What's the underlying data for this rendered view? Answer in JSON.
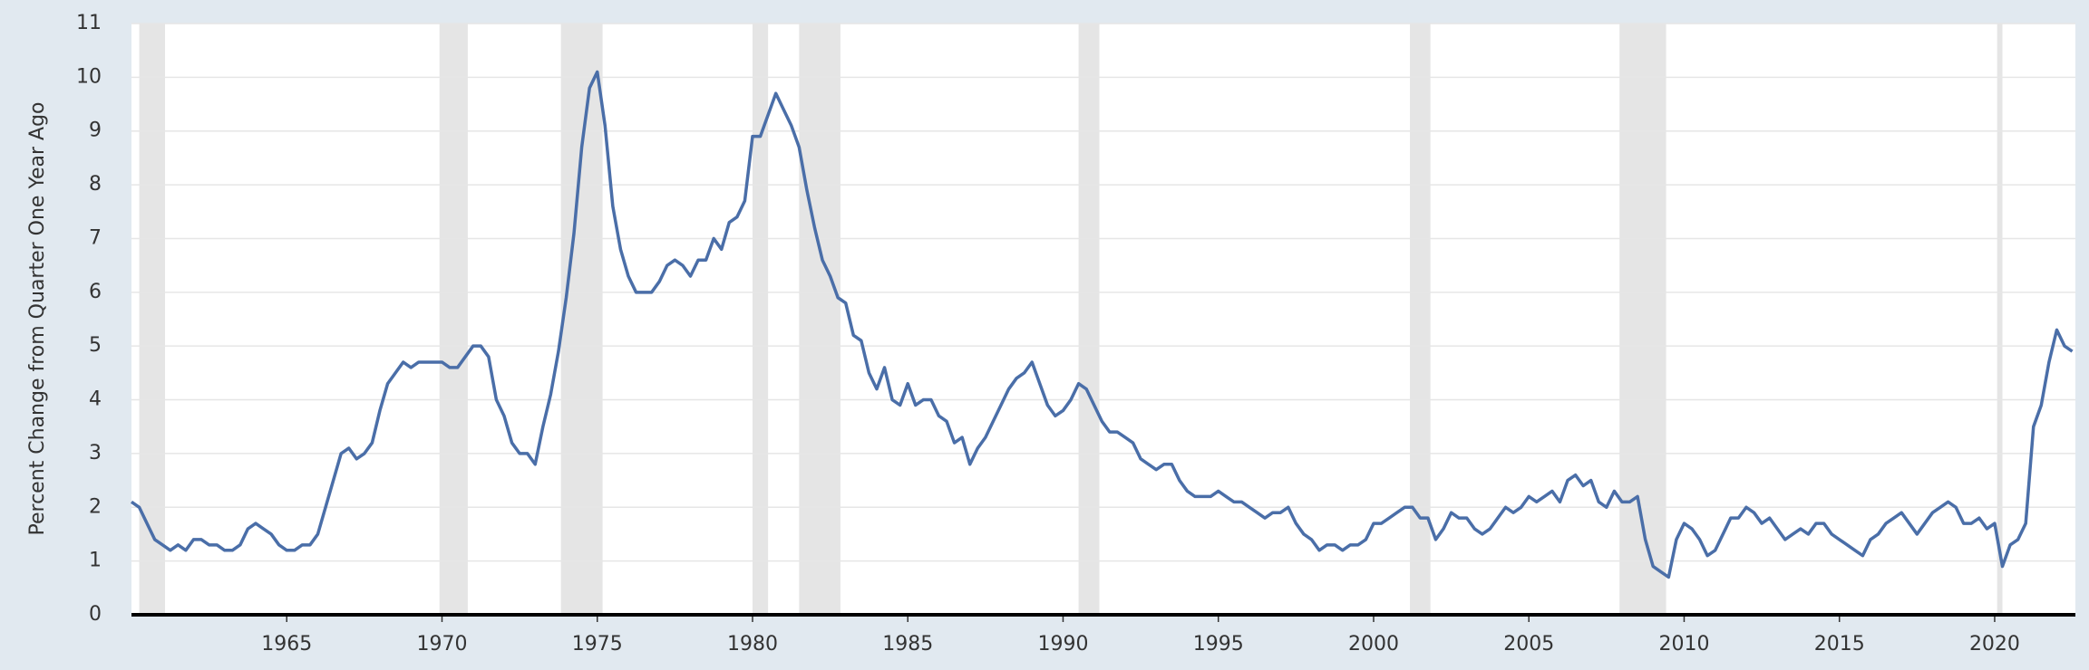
{
  "chart_data": {
    "type": "line",
    "y_label": "Percent Change from Quarter One Year Ago",
    "xlim": [
      1960,
      2022.6
    ],
    "xticks": [
      1965,
      1970,
      1975,
      1980,
      1985,
      1990,
      1995,
      2000,
      2005,
      2010,
      2015,
      2020
    ],
    "ylim": [
      0,
      11
    ],
    "yticks": [
      0,
      1,
      2,
      3,
      4,
      5,
      6,
      7,
      8,
      9,
      10,
      11
    ],
    "grid": true,
    "recessions": [
      [
        1960.25,
        1961.08
      ],
      [
        1969.92,
        1970.83
      ],
      [
        1973.83,
        1975.17
      ],
      [
        1980.0,
        1980.5
      ],
      [
        1981.5,
        1982.83
      ],
      [
        1990.5,
        1991.17
      ],
      [
        2001.17,
        2001.83
      ],
      [
        2007.92,
        2009.42
      ],
      [
        2020.08,
        2020.25
      ]
    ],
    "recession_color": "#e5e5e5",
    "x": [
      1960,
      1960.25,
      1960.5,
      1960.75,
      1961,
      1961.25,
      1961.5,
      1961.75,
      1962,
      1962.25,
      1962.5,
      1962.75,
      1963,
      1963.25,
      1963.5,
      1963.75,
      1964,
      1964.25,
      1964.5,
      1964.75,
      1965,
      1965.25,
      1965.5,
      1965.75,
      1966,
      1966.25,
      1966.5,
      1966.75,
      1967,
      1967.25,
      1967.5,
      1967.75,
      1968,
      1968.25,
      1968.5,
      1968.75,
      1969,
      1969.25,
      1969.5,
      1969.75,
      1970,
      1970.25,
      1970.5,
      1970.75,
      1971,
      1971.25,
      1971.5,
      1971.75,
      1972,
      1972.25,
      1972.5,
      1972.75,
      1973,
      1973.25,
      1973.5,
      1973.75,
      1974,
      1974.25,
      1974.5,
      1974.75,
      1975,
      1975.25,
      1975.5,
      1975.75,
      1976,
      1976.25,
      1976.5,
      1976.75,
      1977,
      1977.25,
      1977.5,
      1977.75,
      1978,
      1978.25,
      1978.5,
      1978.75,
      1979,
      1979.25,
      1979.5,
      1979.75,
      1980,
      1980.25,
      1980.5,
      1980.75,
      1981,
      1981.25,
      1981.5,
      1981.75,
      1982,
      1982.25,
      1982.5,
      1982.75,
      1983,
      1983.25,
      1983.5,
      1983.75,
      1984,
      1984.25,
      1984.5,
      1984.75,
      1985,
      1985.25,
      1985.5,
      1985.75,
      1986,
      1986.25,
      1986.5,
      1986.75,
      1987,
      1987.25,
      1987.5,
      1987.75,
      1988,
      1988.25,
      1988.5,
      1988.75,
      1989,
      1989.25,
      1989.5,
      1989.75,
      1990,
      1990.25,
      1990.5,
      1990.75,
      1991,
      1991.25,
      1991.5,
      1991.75,
      1992,
      1992.25,
      1992.5,
      1992.75,
      1993,
      1993.25,
      1993.5,
      1993.75,
      1994,
      1994.25,
      1994.5,
      1994.75,
      1995,
      1995.25,
      1995.5,
      1995.75,
      1996,
      1996.25,
      1996.5,
      1996.75,
      1997,
      1997.25,
      1997.5,
      1997.75,
      1998,
      1998.25,
      1998.5,
      1998.75,
      1999,
      1999.25,
      1999.5,
      1999.75,
      2000,
      2000.25,
      2000.5,
      2000.75,
      2001,
      2001.25,
      2001.5,
      2001.75,
      2002,
      2002.25,
      2002.5,
      2002.75,
      2003,
      2003.25,
      2003.5,
      2003.75,
      2004,
      2004.25,
      2004.5,
      2004.75,
      2005,
      2005.25,
      2005.5,
      2005.75,
      2006,
      2006.25,
      2006.5,
      2006.75,
      2007,
      2007.25,
      2007.5,
      2007.75,
      2008,
      2008.25,
      2008.5,
      2008.75,
      2009,
      2009.25,
      2009.5,
      2009.75,
      2010,
      2010.25,
      2010.5,
      2010.75,
      2011,
      2011.25,
      2011.5,
      2011.75,
      2012,
      2012.25,
      2012.5,
      2012.75,
      2013,
      2013.25,
      2013.5,
      2013.75,
      2014,
      2014.25,
      2014.5,
      2014.75,
      2015,
      2015.25,
      2015.5,
      2015.75,
      2016,
      2016.25,
      2016.5,
      2016.75,
      2017,
      2017.25,
      2017.5,
      2017.75,
      2018,
      2018.25,
      2018.5,
      2018.75,
      2019,
      2019.25,
      2019.5,
      2019.75,
      2020,
      2020.25,
      2020.5,
      2020.75,
      2021,
      2021.25,
      2021.5,
      2021.75,
      2022,
      2022.25,
      2022.5
    ],
    "series": [
      {
        "color": "#4a6ea8",
        "values": [
          2.1,
          2.0,
          1.7,
          1.4,
          1.3,
          1.2,
          1.3,
          1.2,
          1.4,
          1.4,
          1.3,
          1.3,
          1.2,
          1.2,
          1.3,
          1.6,
          1.7,
          1.6,
          1.5,
          1.3,
          1.2,
          1.2,
          1.3,
          1.3,
          1.5,
          2.0,
          2.5,
          3.0,
          3.1,
          2.9,
          3.0,
          3.2,
          3.8,
          4.3,
          4.5,
          4.7,
          4.6,
          4.7,
          4.7,
          4.7,
          4.7,
          4.6,
          4.6,
          4.8,
          5.0,
          5.0,
          4.8,
          4.0,
          3.7,
          3.2,
          3.0,
          3.0,
          2.8,
          3.5,
          4.1,
          4.9,
          5.9,
          7.1,
          8.7,
          9.8,
          10.1,
          9.1,
          7.6,
          6.8,
          6.3,
          6.0,
          6.0,
          6.0,
          6.2,
          6.5,
          6.6,
          6.5,
          6.3,
          6.6,
          6.6,
          7.0,
          6.8,
          7.3,
          7.4,
          7.7,
          8.9,
          8.9,
          9.3,
          9.7,
          9.4,
          9.1,
          8.7,
          7.9,
          7.2,
          6.6,
          6.3,
          5.9,
          5.8,
          5.2,
          5.1,
          4.5,
          4.2,
          4.6,
          4.0,
          3.9,
          4.3,
          3.9,
          4.0,
          4.0,
          3.7,
          3.6,
          3.2,
          3.3,
          2.8,
          3.1,
          3.3,
          3.6,
          3.9,
          4.2,
          4.4,
          4.5,
          4.7,
          4.3,
          3.9,
          3.7,
          3.8,
          4.0,
          4.3,
          4.2,
          3.9,
          3.6,
          3.4,
          3.4,
          3.3,
          3.2,
          2.9,
          2.8,
          2.7,
          2.8,
          2.8,
          2.5,
          2.3,
          2.2,
          2.2,
          2.2,
          2.3,
          2.2,
          2.1,
          2.1,
          2.0,
          1.9,
          1.8,
          1.9,
          1.9,
          2.0,
          1.7,
          1.5,
          1.4,
          1.2,
          1.3,
          1.3,
          1.2,
          1.3,
          1.3,
          1.4,
          1.7,
          1.7,
          1.8,
          1.9,
          2.0,
          2.0,
          1.8,
          1.8,
          1.4,
          1.6,
          1.9,
          1.8,
          1.8,
          1.6,
          1.5,
          1.6,
          1.8,
          2.0,
          1.9,
          2.0,
          2.2,
          2.1,
          2.2,
          2.3,
          2.1,
          2.5,
          2.6,
          2.4,
          2.5,
          2.1,
          2.0,
          2.3,
          2.1,
          2.1,
          2.2,
          1.4,
          0.9,
          0.8,
          0.7,
          1.4,
          1.7,
          1.6,
          1.4,
          1.1,
          1.2,
          1.5,
          1.8,
          1.8,
          2.0,
          1.9,
          1.7,
          1.8,
          1.6,
          1.4,
          1.5,
          1.6,
          1.5,
          1.7,
          1.7,
          1.5,
          1.4,
          1.3,
          1.2,
          1.1,
          1.4,
          1.5,
          1.7,
          1.8,
          1.9,
          1.7,
          1.5,
          1.7,
          1.9,
          2.0,
          2.1,
          2.0,
          1.7,
          1.7,
          1.8,
          1.6,
          1.7,
          0.9,
          1.3,
          1.4,
          1.7,
          3.5,
          3.9,
          4.7,
          5.3,
          5.0,
          4.9
        ]
      }
    ]
  }
}
